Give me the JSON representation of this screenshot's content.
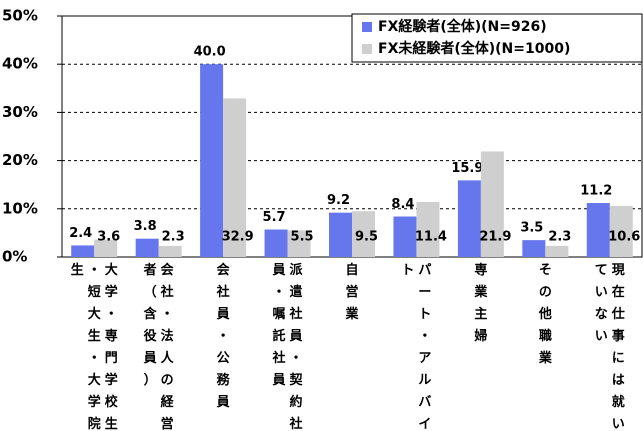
{
  "chart_data": {
    "type": "bar",
    "categories": [
      "大学・専門学校生・短大生・大学院生",
      "会社・法人の経営者（含役員）",
      "会社員・公務員",
      "派遣社員・契約社員・嘱託社員",
      "自営業",
      "パート・アルバイト",
      "専業主婦",
      "その他職業",
      "現在仕事には就いていない"
    ],
    "series": [
      {
        "name": "FX経験者(全体)(N=926)",
        "color": "#6677ee",
        "values": [
          2.4,
          3.8,
          40.0,
          5.7,
          9.2,
          8.4,
          15.9,
          3.5,
          11.2
        ],
        "value_labels": [
          "2.4",
          "3.8",
          "40.0",
          "5.7",
          "9.2",
          "8.4",
          "15.9",
          "3.5",
          "11.2"
        ]
      },
      {
        "name": "FX未経験者(全体)(N=1000)",
        "color": "#cfcfcf",
        "values": [
          3.6,
          2.3,
          32.9,
          5.5,
          9.5,
          11.4,
          21.9,
          2.3,
          10.6
        ]
      }
    ],
    "ylim": [
      0,
      50
    ],
    "yticks": [
      {
        "value": 0,
        "label": "0%"
      },
      {
        "value": 10,
        "label": "10%"
      },
      {
        "value": 20,
        "label": "20%"
      },
      {
        "value": 30,
        "label": "30%"
      },
      {
        "value": 40,
        "label": "40%"
      },
      {
        "value": 50,
        "label": "50%"
      }
    ],
    "grid": true,
    "legend": "top-right"
  }
}
